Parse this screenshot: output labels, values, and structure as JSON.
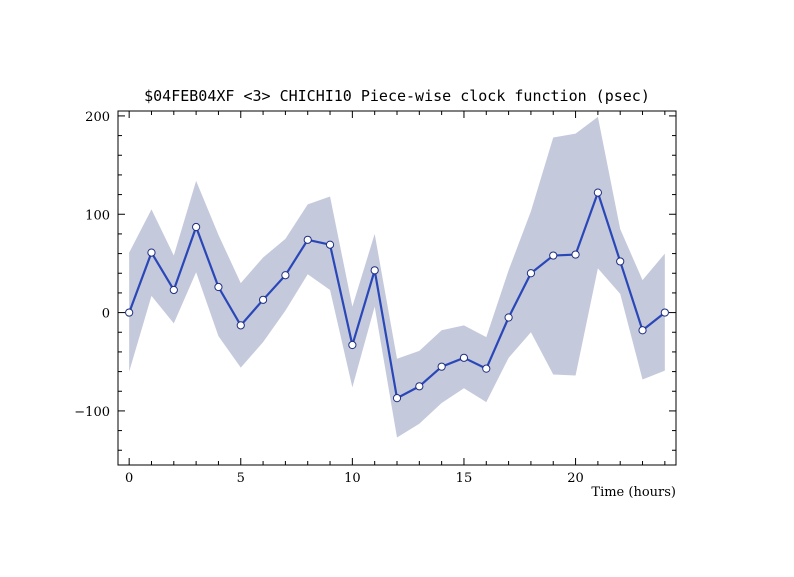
{
  "chart_data": {
    "type": "line",
    "title": "$04FEB04XF <3>   CHICHI10  Piece-wise clock function (psec)",
    "xlabel": "Time (hours)",
    "ylabel": "",
    "xlim": [
      -0.5,
      24.5
    ],
    "ylim": [
      -155,
      205
    ],
    "x_ticks": [
      0,
      5,
      10,
      15,
      20
    ],
    "y_ticks": [
      -100,
      0,
      100,
      200
    ],
    "x_tick_labels": [
      "0",
      "5",
      "10",
      "15",
      "20"
    ],
    "y_tick_labels": [
      "−100",
      "0",
      "100",
      "200"
    ],
    "grid": false,
    "colors": {
      "line": "#2a47b8",
      "band": "#c5c9dc",
      "marker_fill": "#ffffff"
    },
    "series": [
      {
        "x": [
          0,
          1,
          2,
          3,
          4,
          5,
          6,
          7,
          8,
          9,
          10,
          11,
          12,
          13,
          14,
          15,
          16,
          17,
          18,
          19,
          20,
          21,
          22,
          23,
          24
        ],
        "values": [
          0,
          61,
          23,
          87,
          26,
          -13,
          13,
          38,
          74,
          69,
          -33,
          43,
          -87,
          -75,
          -55,
          -46,
          -57,
          -5,
          40,
          58,
          59,
          122,
          52,
          -18,
          0
        ],
        "upper": [
          61,
          105,
          58,
          134,
          79,
          30,
          56,
          75,
          110,
          118,
          6,
          80,
          -47,
          -39,
          -18,
          -13,
          -25,
          43,
          103,
          178,
          182,
          199,
          85,
          33,
          60
        ],
        "lower": [
          -60,
          17,
          -11,
          41,
          -24,
          -56,
          -30,
          2,
          39,
          23,
          -76,
          6,
          -127,
          -113,
          -92,
          -77,
          -91,
          -46,
          -20,
          -63,
          -64,
          45,
          19,
          -68,
          -59
        ]
      }
    ]
  }
}
